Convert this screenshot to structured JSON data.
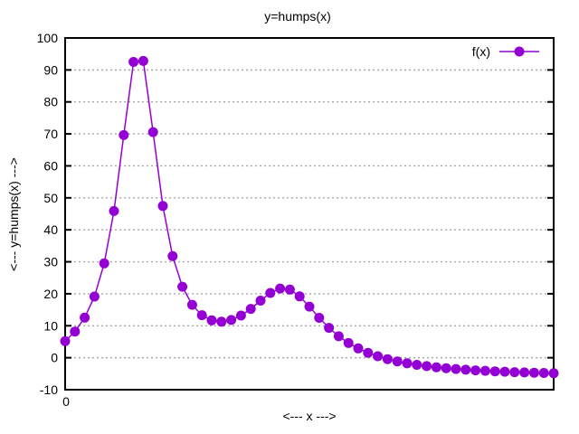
{
  "chart": {
    "title": "y=humps(x)",
    "xlabel": "<--- x --->",
    "ylabel": "<--- y=humps(x) --->",
    "legend": {
      "label": "f(x)"
    }
  },
  "chart_data": {
    "type": "line",
    "title": "y=humps(x)",
    "xlabel": "<--- x --->",
    "ylabel": "<--- y=humps(x) --->",
    "xlim": [
      0,
      2
    ],
    "ylim": [
      -10,
      100
    ],
    "xticks": [
      0
    ],
    "xtick_labels": [
      "0"
    ],
    "yticks": [
      -10,
      0,
      10,
      20,
      30,
      40,
      50,
      60,
      70,
      80,
      90,
      100
    ],
    "ytick_labels": [
      "-10",
      "0",
      "10",
      "20",
      "30",
      "40",
      "50",
      "60",
      "70",
      "80",
      "90",
      "100"
    ],
    "grid": "horizontal-dotted",
    "legend_position": "top-right-inside",
    "marker": "filled-circle",
    "marker_radius": 5.5,
    "colors": {
      "line": "#9400d3",
      "grid": "#a8a8a8",
      "border": "#000000",
      "text": "#000000",
      "background": "#ffffff"
    },
    "series": [
      {
        "name": "f(x)",
        "x": [
          0,
          0.04,
          0.08,
          0.12,
          0.16,
          0.2,
          0.24,
          0.28,
          0.32,
          0.36,
          0.4,
          0.44,
          0.48,
          0.52,
          0.56,
          0.6,
          0.64,
          0.68,
          0.72,
          0.76,
          0.8,
          0.84,
          0.88,
          0.92,
          0.96,
          1.0,
          1.04,
          1.08,
          1.12,
          1.16,
          1.2,
          1.24,
          1.28,
          1.32,
          1.36,
          1.4,
          1.44,
          1.48,
          1.52,
          1.56,
          1.6,
          1.64,
          1.68,
          1.72,
          1.76,
          1.8,
          1.84,
          1.88,
          1.92,
          1.96,
          2.0
        ],
        "y": [
          5.18,
          8.17,
          12.53,
          19.13,
          29.49,
          45.89,
          69.63,
          92.51,
          92.81,
          70.55,
          47.45,
          31.76,
          22.21,
          16.55,
          13.31,
          11.69,
          11.26,
          11.79,
          13.18,
          15.29,
          17.85,
          20.25,
          21.64,
          21.29,
          19.18,
          16.0,
          12.48,
          9.35,
          6.72,
          4.58,
          2.91,
          1.55,
          0.45,
          -0.43,
          -1.14,
          -1.73,
          -2.22,
          -2.63,
          -2.98,
          -3.27,
          -3.52,
          -3.74,
          -3.94,
          -4.1,
          -4.25,
          -4.38,
          -4.5,
          -4.6,
          -4.69,
          -4.78,
          -4.86
        ]
      }
    ]
  }
}
